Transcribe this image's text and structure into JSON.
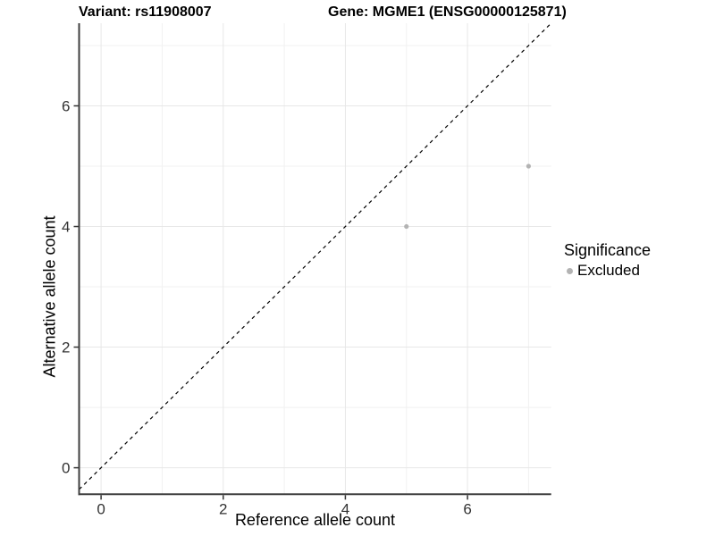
{
  "titles": {
    "variant": "Variant: rs11908007",
    "gene": "Gene: MGME1 (ENSG00000125871)"
  },
  "chart_data": {
    "type": "scatter",
    "title_left": "Variant: rs11908007",
    "title_right": "Gene: MGME1 (ENSG00000125871)",
    "xlabel": "Reference allele count",
    "ylabel": "Alternative allele count",
    "x_ticks": [
      0,
      2,
      4,
      6
    ],
    "y_ticks": [
      0,
      2,
      4,
      6
    ],
    "x_minor": [
      1,
      3,
      5,
      7
    ],
    "y_minor": [
      1,
      3,
      5,
      7
    ],
    "xlim": [
      -0.36,
      7.37
    ],
    "ylim": [
      -0.44,
      7.37
    ],
    "grid": true,
    "series": [
      {
        "name": "Excluded",
        "points": [
          {
            "x": 5,
            "y": 4
          },
          {
            "x": 7,
            "y": 5
          }
        ],
        "color": "#b3b3b3"
      }
    ],
    "identity_line": {
      "type": "dashed",
      "slope": 1,
      "intercept": 0,
      "color": "#000000"
    },
    "legend": {
      "title": "Significance",
      "position": "right",
      "items": [
        {
          "label": "Excluded",
          "color": "#b3b3b3"
        }
      ]
    },
    "colors": {
      "grid_major": "#e7e7e7",
      "grid_minor": "#f1f1f1",
      "axis_line": "#3f3f3f",
      "tick_mark": "#333333",
      "tick_label": "#333333",
      "background": "#ffffff"
    }
  }
}
